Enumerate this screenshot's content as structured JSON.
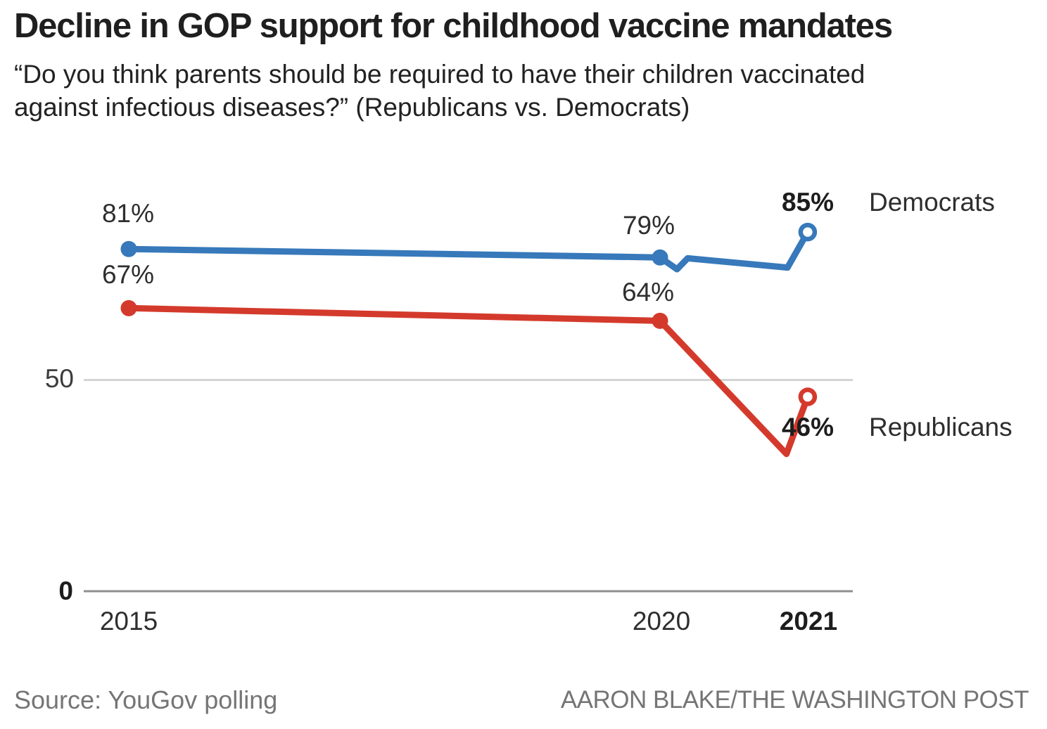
{
  "header": {
    "title": "Decline in GOP support for childhood vaccine mandates",
    "subtitle_lines": [
      "“Do you think parents should be required to have their children vaccinated",
      "against infectious diseases?” (Republicans vs. Democrats)"
    ]
  },
  "chart_data": {
    "type": "line",
    "title": "Decline in GOP support for childhood vaccine mandates",
    "question": "Do you think parents should be required to have their children vaccinated against infectious diseases?",
    "unit": "%",
    "x_axis": {
      "ticks": [
        {
          "label": "2015",
          "t": 2015,
          "bold": false
        },
        {
          "label": "2020",
          "t": 2020,
          "bold": false
        },
        {
          "label": "2021",
          "t": 2021.39,
          "bold": true
        }
      ]
    },
    "y_axis": {
      "range": [
        0,
        100
      ],
      "gridlines": [
        {
          "label": "50",
          "v": 50,
          "bold": false
        },
        {
          "label": "0",
          "v": 0,
          "bold": true
        }
      ]
    },
    "legend_position": "right",
    "series": [
      {
        "name": "Democrats",
        "color": "#3779BA",
        "points": [
          {
            "t": 2015,
            "v": 81,
            "label": "81%",
            "marker": "dot"
          },
          {
            "t": 2020,
            "v": 79,
            "label": "79%",
            "marker": "dot"
          },
          {
            "t": 2020.16,
            "v": 76.2
          },
          {
            "t": 2020.26,
            "v": 78.8
          },
          {
            "t": 2021.2,
            "v": 76.6
          },
          {
            "t": 2021.39,
            "v": 85,
            "label": "85%",
            "marker": "open"
          }
        ]
      },
      {
        "name": "Republicans",
        "color": "#D43A2C",
        "points": [
          {
            "t": 2015,
            "v": 67,
            "label": "67%",
            "marker": "dot"
          },
          {
            "t": 2020,
            "v": 64,
            "label": "64%",
            "marker": "dot"
          },
          {
            "t": 2021.19,
            "v": 32.5
          },
          {
            "t": 2021.39,
            "v": 46,
            "label": "46%",
            "marker": "open"
          }
        ]
      }
    ],
    "gridline_color": "#D4D4D4",
    "zero_line_color": "#8F8F8F"
  },
  "footer": {
    "source": "Source: YouGov polling",
    "credit": "AARON BLAKE/THE WASHINGTON POST"
  }
}
